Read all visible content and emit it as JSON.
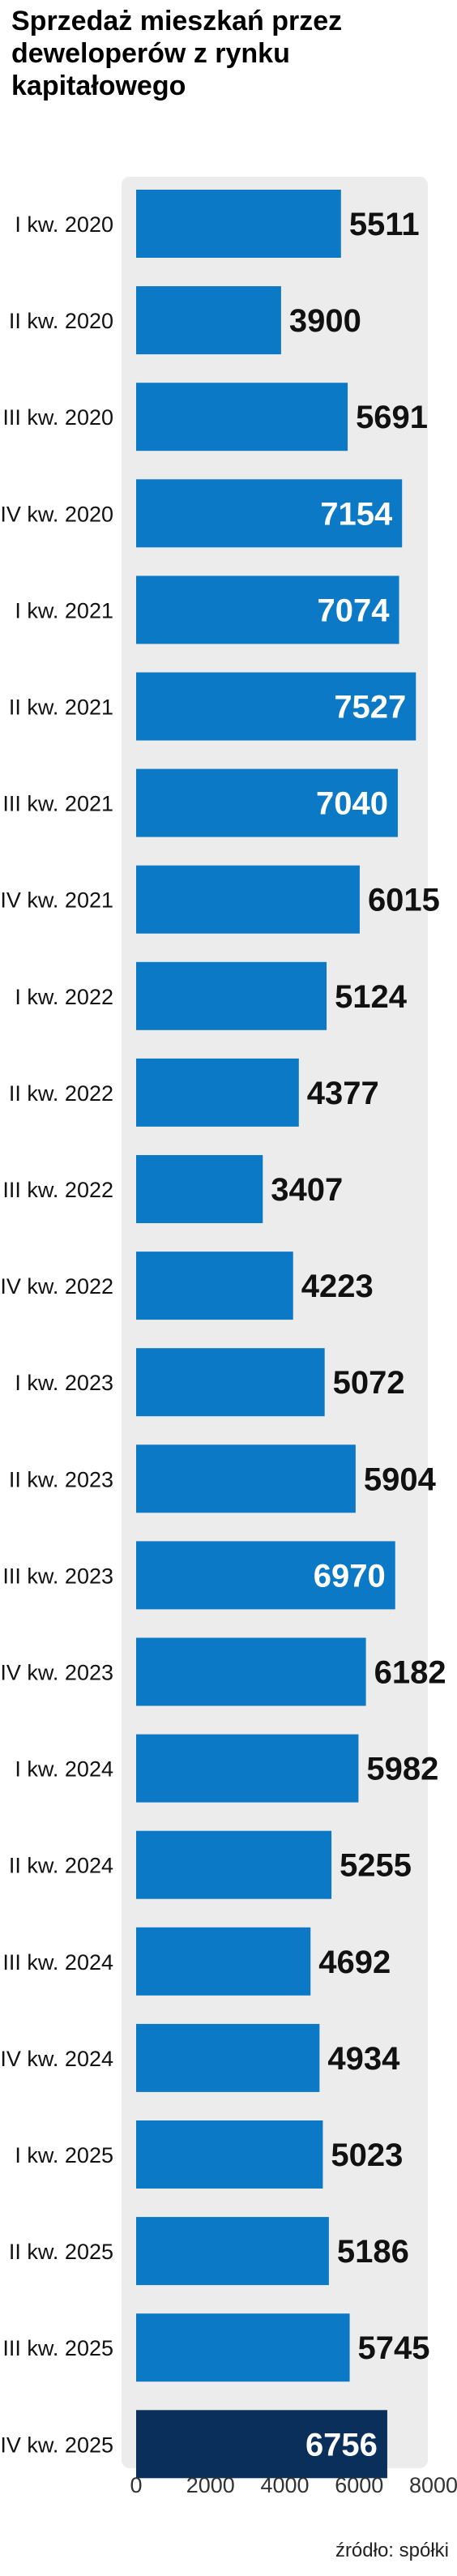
{
  "title": "Sprzedaż mieszkań przez deweloperów z rynku kapitałowego",
  "source": "źródło: spółki",
  "colors": {
    "bar": "#0b79c5",
    "highlight": "#0a2f5a",
    "background_panel": "#ececec",
    "label_inside": "#ffffff",
    "label_outside": "#111111"
  },
  "chart_data": {
    "type": "bar",
    "orientation": "horizontal",
    "categories": [
      "I kw. 2020",
      "II kw. 2020",
      "III kw. 2020",
      "IV kw. 2020",
      "I kw. 2021",
      "II kw. 2021",
      "III kw. 2021",
      "IV kw. 2021",
      "I kw. 2022",
      "II kw. 2022",
      "III kw. 2022",
      "IV kw. 2022",
      "I kw. 2023",
      "II kw. 2023",
      "III kw. 2023",
      "IV kw. 2023",
      "I kw. 2024",
      "II kw. 2024",
      "III kw. 2024",
      "IV kw. 2024",
      "I kw. 2025",
      "II kw. 2025",
      "III kw. 2025",
      "IV kw. 2025"
    ],
    "values": [
      5511,
      3900,
      5691,
      7154,
      7074,
      7527,
      7040,
      6015,
      5124,
      4377,
      3407,
      4223,
      5072,
      5904,
      6970,
      6182,
      5982,
      5255,
      4692,
      4934,
      5023,
      5186,
      5745,
      6756
    ],
    "labels_inside": [
      false,
      false,
      false,
      true,
      true,
      true,
      true,
      false,
      false,
      false,
      false,
      false,
      false,
      false,
      true,
      false,
      false,
      false,
      false,
      false,
      false,
      false,
      false,
      true
    ],
    "highlight_index": 23,
    "xlim": [
      0,
      8000
    ],
    "xticks": [
      "0",
      "2000",
      "4000",
      "6000",
      "8000"
    ],
    "xlabel": "",
    "ylabel": "",
    "grid": false
  }
}
